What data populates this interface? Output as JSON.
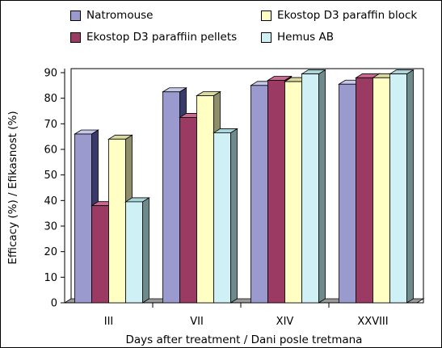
{
  "chart_data": {
    "type": "bar",
    "categories": [
      "III",
      "VII",
      "XIV",
      "XXVIII"
    ],
    "series": [
      {
        "name": "Natromouse",
        "values": [
          66,
          82.5,
          85,
          85.5
        ],
        "color": "#9A9ACF",
        "side": "#3A3A6A",
        "top": "#C8C8EA"
      },
      {
        "name": "Ekostop D3 paraffiin pellets",
        "values": [
          38,
          72.5,
          87,
          88
        ],
        "color": "#9B3A63",
        "side": "#5A1E38",
        "top": "#C96A90"
      },
      {
        "name": "Ekostop D3 paraffin block",
        "values": [
          64,
          81,
          86.5,
          88
        ],
        "color": "#FFFFC4",
        "side": "#8E8E6A",
        "top": "#D9D9A2"
      },
      {
        "name": "Hemus AB",
        "values": [
          39.5,
          66.5,
          89.5,
          89.5
        ],
        "color": "#CFF1F5",
        "side": "#6E8A8A",
        "top": "#A9D6DB"
      }
    ],
    "xlabel": "Days after treatment / Dani posle tretmana",
    "ylabel": "Efficacy (%) / Efikasnost (%)",
    "ylim": [
      0,
      90
    ],
    "yticks": [
      0,
      10,
      20,
      30,
      40,
      50,
      60,
      70,
      80,
      90
    ],
    "grid": false,
    "legend_position": "top",
    "plot_border_color": "#000000",
    "floor_color": "#9A9A9A"
  }
}
